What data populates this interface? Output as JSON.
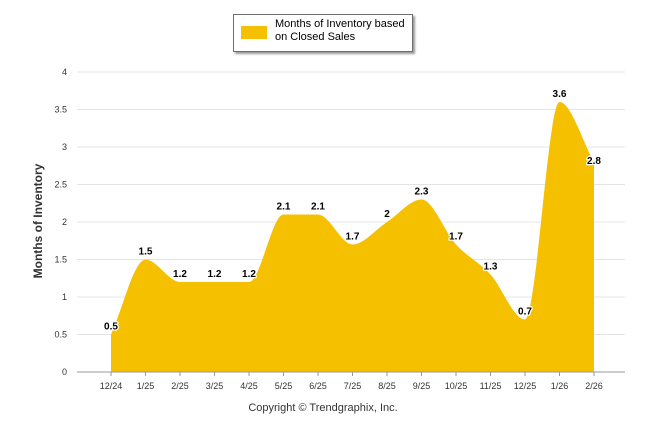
{
  "chart_data": {
    "type": "area",
    "series": [
      {
        "name": "Months of Inventory based on Closed Sales",
        "values": [
          0.5,
          1.5,
          1.2,
          1.2,
          1.2,
          2.1,
          2.1,
          1.7,
          2,
          2.3,
          1.7,
          1.3,
          0.7,
          3.6,
          2.8
        ]
      }
    ],
    "categories": [
      "12/24",
      "1/25",
      "2/25",
      "3/25",
      "4/25",
      "5/25",
      "6/25",
      "7/25",
      "8/25",
      "9/25",
      "10/25",
      "11/25",
      "12/25",
      "1/26",
      "2/26"
    ],
    "data_labels": [
      "0.5",
      "1.5",
      "1.2",
      "1.2",
      "1.2",
      "2.1",
      "2.1",
      "1.7",
      "2",
      "2.3",
      "1.7",
      "1.3",
      "0.7",
      "3.6",
      "2.8"
    ],
    "y_ticks": [
      "0",
      "0.5",
      "1",
      "1.5",
      "2",
      "2.5",
      "3",
      "3.5",
      "4"
    ],
    "ylim": [
      0,
      4
    ],
    "ylabel": "Months of Inventory",
    "xlabel": "",
    "legend": {
      "label": "Months of Inventory based on Closed Sales",
      "position": "top-center"
    },
    "grid": true,
    "colors": {
      "area": "#f5c000",
      "grid": "#e4e4e4",
      "axis": "#999999"
    }
  },
  "footer": {
    "copyright": "Copyright © Trendgraphix, Inc."
  }
}
